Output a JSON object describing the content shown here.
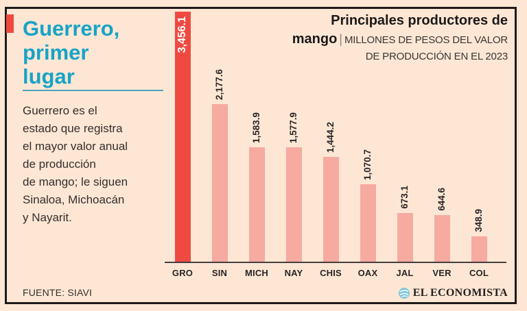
{
  "page": {
    "background_color": "#fde7d4",
    "frame_border_color": "#1e1a1b"
  },
  "left_panel": {
    "accent_color": "#ee4a41",
    "title": "Guerrero,\nprimer\nlugar",
    "title_color": "#18a3c6",
    "description": "Guerrero es el\nestado que registra\nel mayor valor anual\nde producción\nde mango; le siguen\nSinaloa, Michoacán\ny Nayarit.",
    "source": "FUENTE: SIAVI"
  },
  "chart_header": {
    "title_line1": "Principales productores de",
    "title_line2_bold": "mango",
    "separator": "|",
    "subtitle_line1": "MILLONES DE PESOS DEL VALOR",
    "subtitle_line2": "DE PRODUCCIÓN EN EL 2023"
  },
  "chart_data": {
    "type": "bar",
    "title": "Principales productores de mango",
    "subtitle": "MILLONES DE PESOS DEL VALOR DE PRODUCCIÓN EN EL 2023",
    "categories": [
      "GRO",
      "SIN",
      "MICH",
      "NAY",
      "CHIS",
      "OAX",
      "JAL",
      "VER",
      "COL"
    ],
    "values": [
      3456.1,
      2177.6,
      1583.9,
      1577.9,
      1444.2,
      1070.7,
      673.1,
      644.6,
      348.9
    ],
    "value_labels": [
      "3,456.1",
      "2,177.6",
      "1,583.9",
      "1,577.9",
      "1,444.2",
      "1,070.7",
      "673.1",
      "644.6",
      "348.9"
    ],
    "xlabel": "",
    "ylabel": "",
    "ylim": [
      0,
      3456.1
    ],
    "grid": false,
    "legend": false,
    "highlight_index": 0,
    "bar_color": "#f6aaa0",
    "highlight_color": "#ee4a41",
    "value_label_color": "#2a2425",
    "highlight_value_label_color": "#ffffff"
  },
  "footer": {
    "brand": "EL ECONOMISTA",
    "brand_icon": "el-economista-globe-icon",
    "brand_icon_color": "#7fc5d9"
  }
}
